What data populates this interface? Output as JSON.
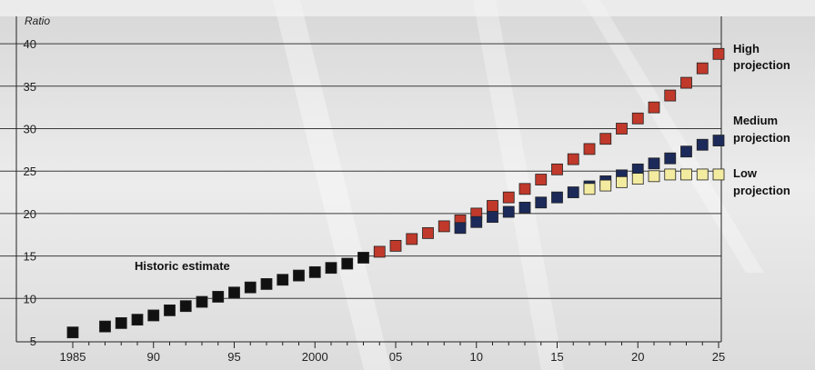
{
  "chart_data": {
    "type": "scatter",
    "ylabel": "Ratio",
    "xlabel": "",
    "ylim": [
      5,
      42
    ],
    "xlim": [
      1985,
      2025
    ],
    "y_ticks": [
      5,
      10,
      15,
      20,
      25,
      30,
      35,
      40
    ],
    "x_ticks": [
      {
        "value": 1985,
        "label": "1985"
      },
      {
        "value": 1990,
        "label": "90"
      },
      {
        "value": 1995,
        "label": "95"
      },
      {
        "value": 2000,
        "label": "2000"
      },
      {
        "value": 2005,
        "label": "05"
      },
      {
        "value": 2010,
        "label": "10"
      },
      {
        "value": 2015,
        "label": "15"
      },
      {
        "value": 2020,
        "label": "20"
      },
      {
        "value": 2025,
        "label": "25"
      }
    ],
    "grid": "horizontal",
    "series": [
      {
        "name": "Historic estimate",
        "color": "#111111",
        "x": [
          1985,
          1987,
          1988,
          1989,
          1990,
          1991,
          1992,
          1993,
          1994,
          1995,
          1996,
          1997,
          1998,
          1999,
          2000,
          2001,
          2002,
          2003
        ],
        "y": [
          6.0,
          6.7,
          7.1,
          7.5,
          8.0,
          8.6,
          9.1,
          9.6,
          10.2,
          10.7,
          11.3,
          11.7,
          12.2,
          12.7,
          13.1,
          13.6,
          14.1,
          14.8
        ]
      },
      {
        "name": "High projection",
        "color": "#c0392b",
        "x": [
          2004,
          2005,
          2006,
          2007,
          2008,
          2009,
          2010,
          2011,
          2012,
          2013,
          2014,
          2015,
          2016,
          2017,
          2018,
          2019,
          2020,
          2021,
          2022,
          2023,
          2024,
          2025
        ],
        "y": [
          15.5,
          16.2,
          17.0,
          17.7,
          18.5,
          19.2,
          20.0,
          20.9,
          21.9,
          22.9,
          24.0,
          25.2,
          26.4,
          27.6,
          28.8,
          30.0,
          31.2,
          32.5,
          33.9,
          35.4,
          37.1,
          38.8
        ]
      },
      {
        "name": "Medium projection",
        "color": "#1c2a5a",
        "x": [
          2009,
          2010,
          2011,
          2012,
          2013,
          2014,
          2015,
          2016,
          2017,
          2018,
          2019,
          2020,
          2021,
          2022,
          2023,
          2024,
          2025
        ],
        "y": [
          18.3,
          19.0,
          19.6,
          20.2,
          20.7,
          21.3,
          21.9,
          22.5,
          23.2,
          23.8,
          24.5,
          25.2,
          25.9,
          26.5,
          27.3,
          28.1,
          28.6
        ]
      },
      {
        "name": "Low projection",
        "color": "#f3eba0",
        "x": [
          2017,
          2018,
          2019,
          2020,
          2021,
          2022,
          2023,
          2024,
          2025
        ],
        "y": [
          22.9,
          23.3,
          23.7,
          24.1,
          24.4,
          24.6,
          24.6,
          24.6,
          24.6
        ]
      }
    ],
    "annotations": {
      "historic": "Historic estimate",
      "high_line1": "High",
      "high_line2": "projection",
      "medium_line1": "Medium",
      "medium_line2": "projection",
      "low_line1": "Low",
      "low_line2": "projection"
    }
  }
}
